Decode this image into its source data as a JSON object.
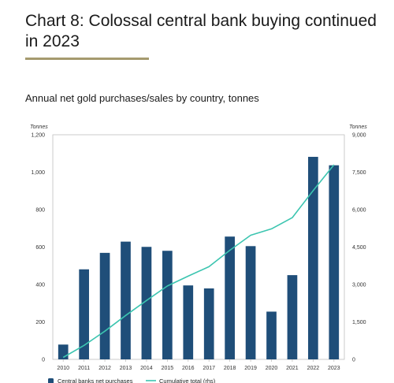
{
  "header": {
    "title": "Chart 8: Colossal central bank buying continued in 2023",
    "subtitle": "Annual net gold purchases/sales by country, tonnes",
    "rule_color": "#a59a6e"
  },
  "chart_data": {
    "type": "bar",
    "categories": [
      "2010",
      "2011",
      "2012",
      "2013",
      "2014",
      "2015",
      "2016",
      "2017",
      "2018",
      "2019",
      "2020",
      "2021",
      "2022",
      "2023"
    ],
    "series": [
      {
        "name": "Central banks net purchases",
        "type": "bar",
        "axis": "left",
        "color": "#1f4e79",
        "values": [
          79,
          481,
          569,
          629,
          601,
          580,
          395,
          379,
          656,
          605,
          255,
          450,
          1082,
          1037
        ]
      },
      {
        "name": "Cumulative total (rhs)",
        "type": "line",
        "axis": "right",
        "color": "#3cc5b0",
        "values": [
          79,
          560,
          1129,
          1758,
          2359,
          2939,
          3334,
          3713,
          4369,
          4974,
          5229,
          5679,
          6761,
          7798
        ]
      }
    ],
    "yleft": {
      "label": "Tonnes",
      "lim": [
        0,
        1200
      ],
      "ticks": [
        "0",
        "200",
        "400",
        "600",
        "800",
        "1,000",
        "1,200"
      ],
      "tick_values": [
        0,
        200,
        400,
        600,
        800,
        1000,
        1200
      ]
    },
    "yright": {
      "label": "Tonnes",
      "lim": [
        0,
        9000
      ],
      "ticks": [
        "0",
        "1,500",
        "3,000",
        "4,500",
        "6,000",
        "7,500",
        "9,000"
      ],
      "tick_values": [
        0,
        1500,
        3000,
        4500,
        6000,
        7500,
        9000
      ]
    },
    "grid": false,
    "legend_position": "bottom"
  }
}
